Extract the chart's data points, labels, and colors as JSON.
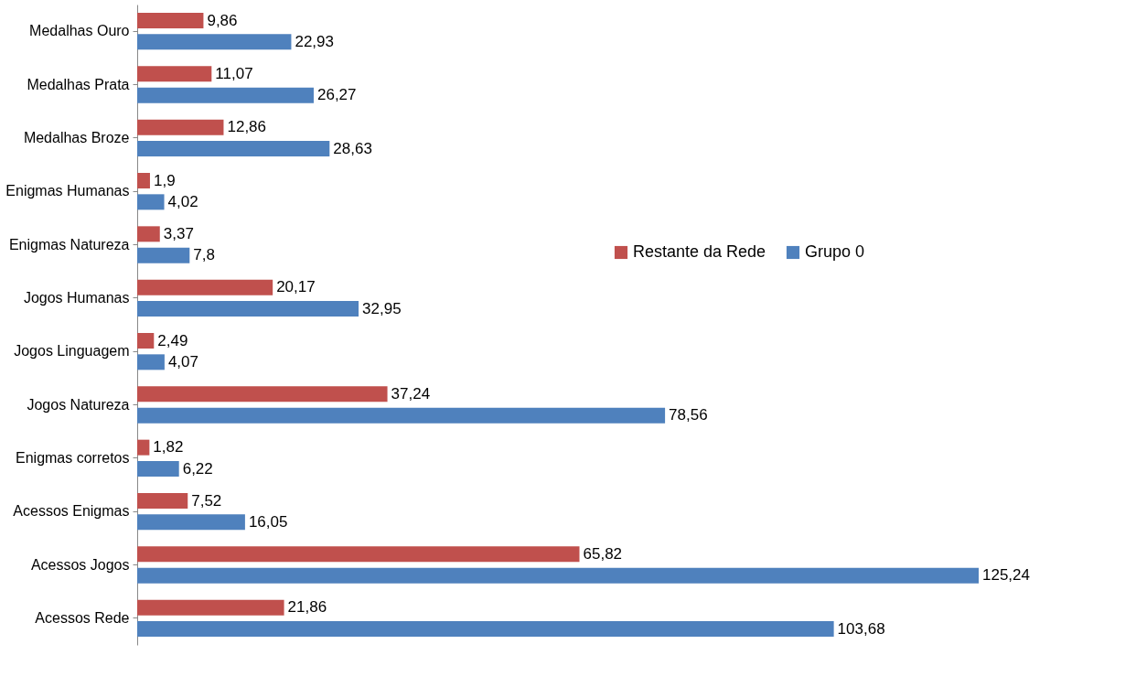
{
  "chart_data": {
    "type": "bar",
    "orientation": "horizontal",
    "categories": [
      "Medalhas Ouro",
      "Medalhas Prata",
      "Medalhas Broze",
      "Enigmas Humanas",
      "Enigmas Natureza",
      "Jogos Humanas",
      "Jogos Linguagem",
      "Jogos Natureza",
      "Enigmas corretos",
      "Acessos Enigmas",
      "Acessos Jogos",
      "Acessos Rede"
    ],
    "series": [
      {
        "name": "Restante da Rede",
        "color": "#c0504d",
        "values": [
          9.86,
          11.07,
          12.86,
          1.9,
          3.37,
          20.17,
          2.49,
          37.24,
          1.82,
          7.52,
          65.82,
          21.86
        ],
        "value_labels": [
          "9,86",
          "11,07",
          "12,86",
          "1,9",
          "3,37",
          "20,17",
          "2,49",
          "37,24",
          "1,82",
          "7,52",
          "65,82",
          "21,86"
        ]
      },
      {
        "name": "Grupo 0",
        "color": "#4f81bd",
        "values": [
          22.93,
          26.27,
          28.63,
          4.02,
          7.8,
          32.95,
          4.07,
          78.56,
          6.22,
          16.05,
          125.24,
          103.68
        ],
        "value_labels": [
          "22,93",
          "26,27",
          "28,63",
          "4,02",
          "7,8",
          "32,95",
          "4,07",
          "78,56",
          "6,22",
          "16,05",
          "125,24",
          "103,68"
        ]
      }
    ],
    "legend": "right",
    "tick_labels": "y",
    "grid": false
  }
}
